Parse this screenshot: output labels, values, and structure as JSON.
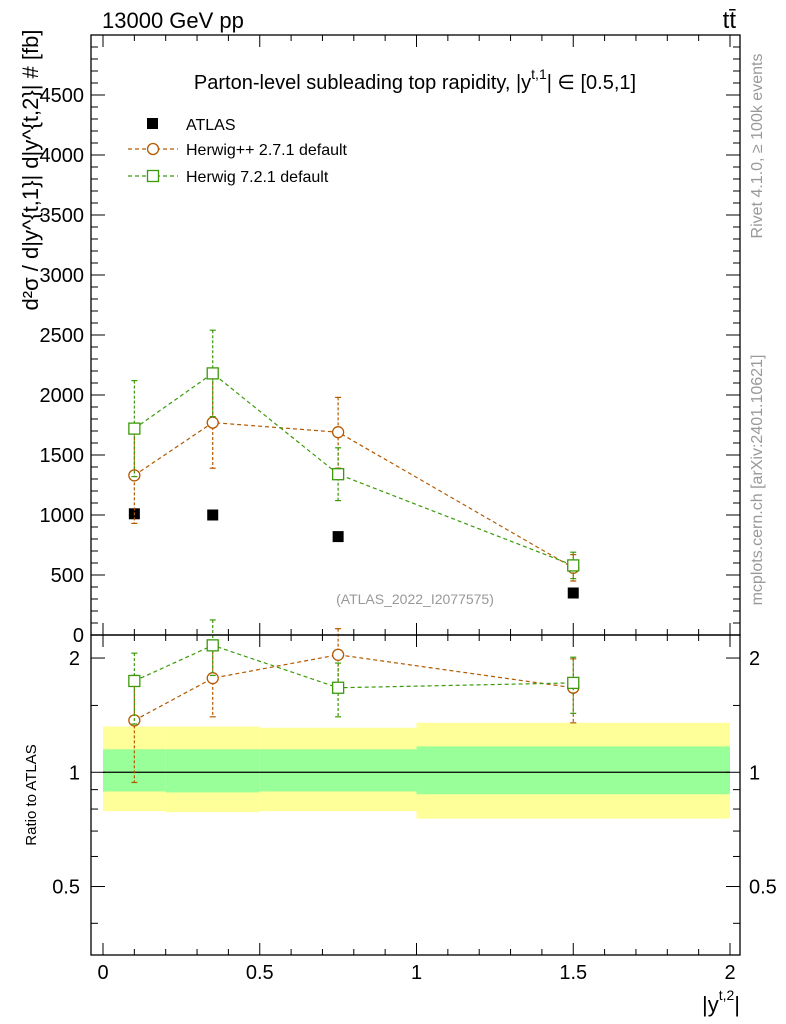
{
  "header": {
    "energy_label": "13000 GeV pp",
    "process_label": "tt̄"
  },
  "side_labels": {
    "rivet": "Rivet 4.1.0, ≥ 100k events",
    "mcplots": "mcplots.cern.ch [arXiv:2401.10621]"
  },
  "colors": {
    "atlas": "#000000",
    "herwigpp": "#b35900",
    "herwig7": "#3a9a0a",
    "band_outer": "#ffff99",
    "band_inner": "#99ff99",
    "watermark": "#999999"
  },
  "chart_data": [
    {
      "type": "scatter",
      "panel": "main",
      "title": "Parton-level subleading top rapidity, |y^{t,1}| ∈ [0.5,1]",
      "title_parts": {
        "prefix": "Parton-level subleading top rapidity, |y",
        "sup": "t,1",
        "suffix": "| ∈ [0.5,1]"
      },
      "ylabel": "d²σ / d|y^{t,1}| d|y^{t,2}| # [fb]",
      "watermark": "(ATLAS_2022_I2077575)",
      "xlim": [
        0,
        2
      ],
      "ylim": [
        0,
        5000
      ],
      "yticks": [
        0,
        500,
        1000,
        1500,
        2000,
        2500,
        3000,
        3500,
        4000,
        4500
      ],
      "ytick_labels": [
        "0",
        "500",
        "1000",
        "1500",
        "2000",
        "2500",
        "3000",
        "3500",
        "4000",
        "4500"
      ],
      "legend_position": "top-left",
      "series": [
        {
          "name": "ATLAS",
          "marker": "filled-square",
          "x": [
            0.1,
            0.35,
            0.75,
            1.5
          ],
          "y": [
            1010,
            1000,
            820,
            350
          ]
        },
        {
          "name": "Herwig++ 2.7.1 default",
          "marker": "open-circle",
          "line": "dashed",
          "x": [
            0.1,
            0.35,
            0.75,
            1.5
          ],
          "y": [
            1330,
            1770,
            1690,
            560
          ],
          "err_low": [
            400,
            380,
            300,
            110
          ],
          "err_high": [
            400,
            380,
            290,
            110
          ]
        },
        {
          "name": "Herwig 7.2.1 default",
          "marker": "open-square",
          "line": "dashed",
          "x": [
            0.1,
            0.35,
            0.75,
            1.5
          ],
          "y": [
            1720,
            2180,
            1340,
            580
          ],
          "err_low": [
            400,
            360,
            220,
            110
          ],
          "err_high": [
            400,
            360,
            220,
            110
          ]
        }
      ]
    },
    {
      "type": "scatter",
      "panel": "ratio",
      "ylabel": "Ratio to ATLAS",
      "xlabel": "|y^{t,2}|",
      "xlabel_parts": {
        "prefix": "|y",
        "sup": "t,2",
        "suffix": "|"
      },
      "xlim": [
        0,
        2
      ],
      "ylim": [
        0.33,
        2.3
      ],
      "yscale": "log",
      "yticks": [
        0.5,
        1,
        2
      ],
      "ytick_labels": [
        "0.5",
        "1",
        "2"
      ],
      "xticks": [
        0,
        0.5,
        1,
        1.5,
        2
      ],
      "xtick_labels": [
        "0",
        "0.5",
        "1",
        "1.5",
        "2"
      ],
      "bands": [
        {
          "xlo": 0.0,
          "xhi": 0.2,
          "outer": [
            0.79,
            1.32
          ],
          "inner": [
            0.89,
            1.15
          ]
        },
        {
          "xlo": 0.2,
          "xhi": 0.5,
          "outer": [
            0.785,
            1.32
          ],
          "inner": [
            0.885,
            1.15
          ]
        },
        {
          "xlo": 0.5,
          "xhi": 1.0,
          "outer": [
            0.79,
            1.31
          ],
          "inner": [
            0.89,
            1.15
          ]
        },
        {
          "xlo": 1.0,
          "xhi": 2.0,
          "outer": [
            0.755,
            1.35
          ],
          "inner": [
            0.875,
            1.17
          ]
        }
      ],
      "series": [
        {
          "name": "Herwig++ 2.7.1 default",
          "x": [
            0.1,
            0.35,
            0.75,
            1.5
          ],
          "y": [
            1.37,
            1.77,
            2.04,
            1.67
          ],
          "err_low": [
            0.43,
            0.37,
            0.36,
            0.32
          ],
          "err_high": [
            0.43,
            0.37,
            0.35,
            0.32
          ]
        },
        {
          "name": "Herwig 7.2.1 default",
          "x": [
            0.1,
            0.35,
            0.75,
            1.5
          ],
          "y": [
            1.74,
            2.16,
            1.67,
            1.72
          ],
          "err_low": [
            0.4,
            0.36,
            0.27,
            0.29
          ],
          "err_high": [
            0.32,
            0.36,
            0.27,
            0.29
          ]
        }
      ]
    }
  ]
}
